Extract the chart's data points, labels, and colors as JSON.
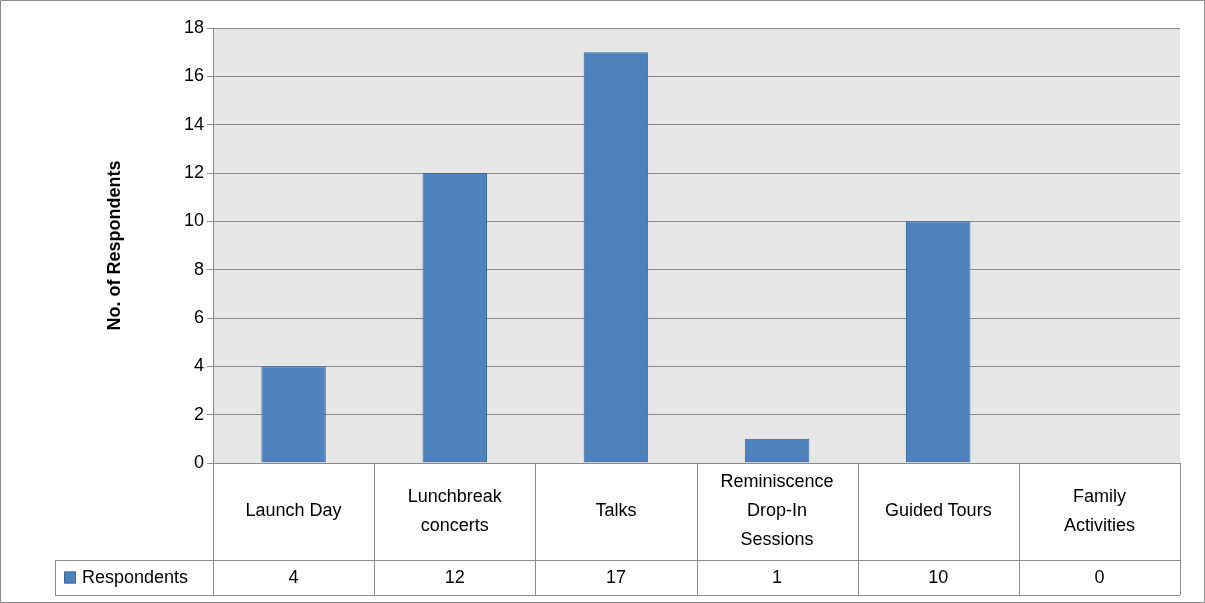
{
  "chart_data": {
    "type": "bar",
    "ylabel": "No. of Respondents",
    "categories": [
      "Launch Day",
      "Lunchbreak concerts",
      "Talks",
      "Reminiscence Drop-In Sessions",
      "Guided Tours",
      "Family Activities"
    ],
    "series": [
      {
        "name": "Respondents",
        "color": "#4f81bd",
        "values": [
          4,
          12,
          17,
          1,
          10,
          0
        ]
      }
    ],
    "ylim": [
      0,
      18
    ],
    "yticks": [
      0,
      2,
      4,
      6,
      8,
      10,
      12,
      14,
      16,
      18
    ],
    "grid": "y",
    "legend": "bottom left",
    "data_labels": true
  }
}
